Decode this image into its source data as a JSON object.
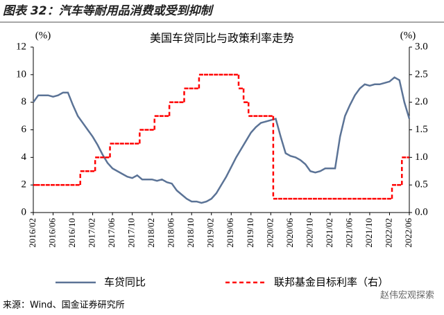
{
  "header": {
    "title": "图表 32：汽车等耐用品消费或受到抑制"
  },
  "chart_data": {
    "type": "line",
    "title": "美国车贷同比与政策利率走势",
    "y_label": "(%)",
    "y2_label": "(%)",
    "categories": [
      "2016/02",
      null,
      null,
      null,
      "2016/06",
      null,
      null,
      null,
      "2016/10",
      null,
      null,
      null,
      "2017/02",
      null,
      null,
      null,
      "2017/06",
      null,
      null,
      null,
      "2017/10",
      null,
      null,
      null,
      "2018/02",
      null,
      null,
      null,
      "2018/06",
      null,
      null,
      null,
      "2018/10",
      null,
      null,
      null,
      "2019/02",
      null,
      null,
      null,
      "2019/06",
      null,
      null,
      null,
      "2019/10",
      null,
      null,
      null,
      "2020/02",
      null,
      null,
      null,
      "2020/06",
      null,
      null,
      null,
      "2020/10",
      null,
      null,
      null,
      "2021/02",
      null,
      null,
      null,
      "2021/06",
      null,
      null,
      null,
      "2021/10",
      null,
      null,
      null,
      "2022/02",
      null,
      null,
      null,
      "2022/06"
    ],
    "series": [
      {
        "name": "车贷同比",
        "color": "#5b7396",
        "values": [
          8.0,
          8.5,
          8.5,
          8.5,
          8.4,
          8.5,
          8.7,
          8.7,
          7.8,
          7.0,
          6.5,
          6.0,
          5.5,
          4.9,
          4.2,
          3.6,
          3.2,
          3.0,
          2.8,
          2.6,
          2.5,
          2.7,
          2.4,
          2.4,
          2.4,
          2.3,
          2.4,
          2.2,
          2.1,
          1.6,
          1.3,
          1.0,
          0.8,
          0.8,
          0.7,
          0.8,
          1.0,
          1.4,
          2.0,
          2.6,
          3.3,
          4.0,
          4.6,
          5.2,
          5.8,
          6.2,
          6.5,
          6.6,
          6.7,
          6.8,
          5.5,
          4.3,
          4.1,
          4.0,
          3.8,
          3.5,
          3.0,
          2.9,
          3.0,
          3.2,
          3.2,
          3.2,
          5.5,
          7.0,
          7.8,
          8.5,
          9.0,
          9.3,
          9.2,
          9.3,
          9.3,
          9.4,
          9.5,
          9.8,
          9.6,
          8.0,
          6.8
        ]
      },
      {
        "name": "联邦基金目标利率（右）",
        "color": "#ff0000",
        "axis": "y2",
        "values": [
          0.5,
          0.5,
          0.5,
          0.5,
          0.5,
          0.5,
          0.5,
          0.5,
          0.5,
          0.5,
          0.75,
          0.75,
          0.75,
          1.0,
          1.0,
          1.0,
          1.25,
          1.25,
          1.25,
          1.25,
          1.25,
          1.25,
          1.5,
          1.5,
          1.5,
          1.75,
          1.75,
          1.75,
          2.0,
          2.0,
          2.0,
          2.25,
          2.25,
          2.25,
          2.5,
          2.5,
          2.5,
          2.5,
          2.5,
          2.5,
          2.5,
          2.5,
          2.25,
          2.0,
          1.75,
          1.75,
          1.75,
          1.75,
          1.75,
          0.25,
          0.25,
          0.25,
          0.25,
          0.25,
          0.25,
          0.25,
          0.25,
          0.25,
          0.25,
          0.25,
          0.25,
          0.25,
          0.25,
          0.25,
          0.25,
          0.25,
          0.25,
          0.25,
          0.25,
          0.25,
          0.25,
          0.25,
          0.25,
          0.5,
          0.5,
          1.0,
          1.0
        ]
      }
    ],
    "ylim": [
      0,
      12
    ],
    "yticks": [
      0,
      2,
      4,
      6,
      8,
      10,
      12
    ],
    "y2lim": [
      0,
      3
    ],
    "y2ticks": [
      {
        "value": 0,
        "label": "0.0"
      },
      0.5,
      {
        "value": 1,
        "label": "1.0"
      },
      1.5,
      {
        "value": 2,
        "label": "2.0"
      },
      2.5,
      {
        "value": 3,
        "label": "3.0"
      }
    ]
  },
  "source": "来源：Wind、国金证券研究所",
  "watermark": "赵伟宏观探索"
}
